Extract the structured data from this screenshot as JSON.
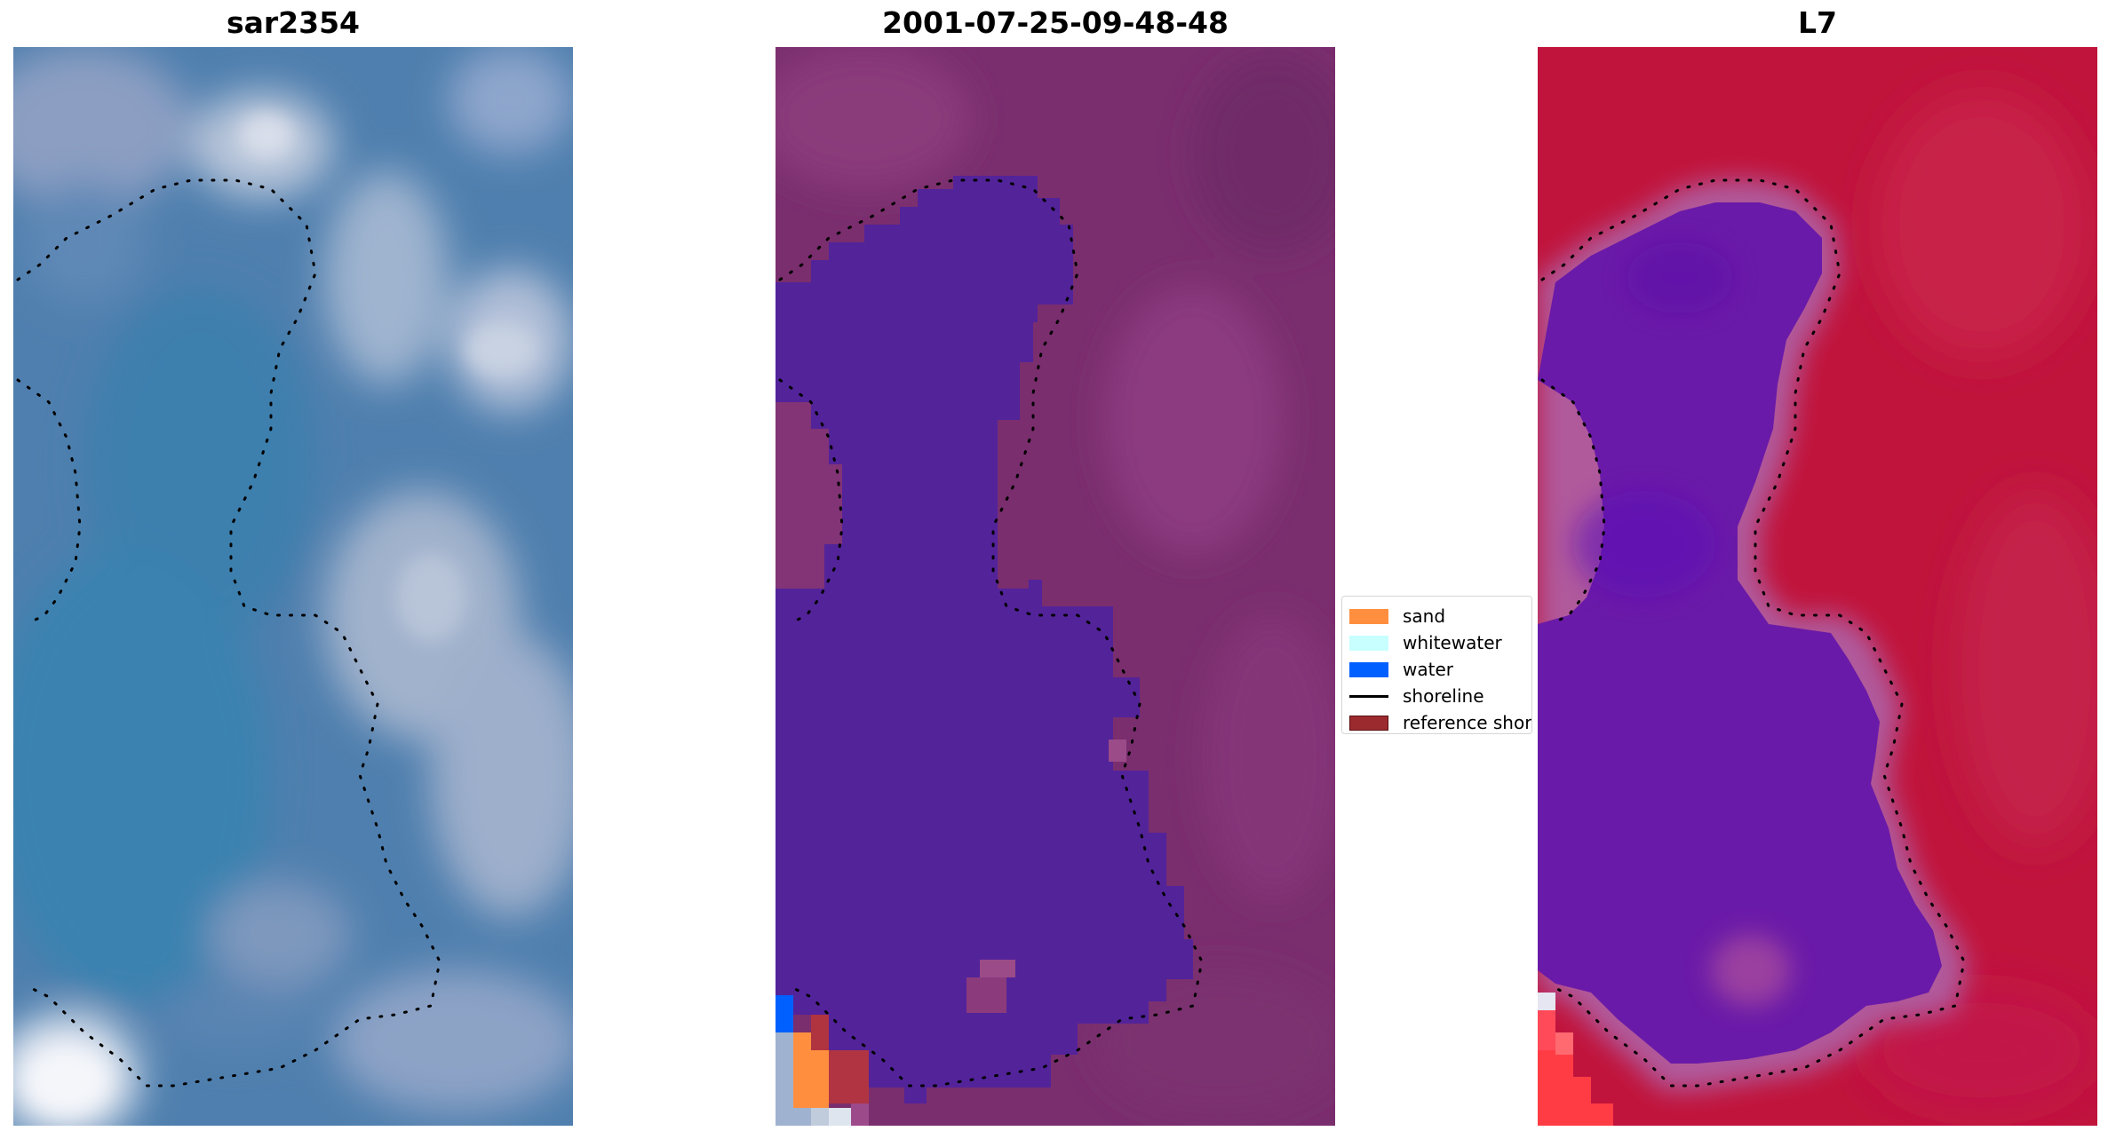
{
  "panels": [
    {
      "title": "sar2354",
      "image": "rgb-satellite-image"
    },
    {
      "title": "2001-07-25-09-48-48",
      "image": "classified-image"
    },
    {
      "title": "L7",
      "image": "mndwi-image"
    }
  ],
  "legend": {
    "items": [
      {
        "label": "sand",
        "color": "#ff8f3f",
        "kind": "patch"
      },
      {
        "label": "whitewater",
        "color": "#c8ffff",
        "kind": "patch"
      },
      {
        "label": "water",
        "color": "#0060ff",
        "kind": "patch"
      },
      {
        "label": "shoreline",
        "color": "#000000",
        "kind": "line"
      },
      {
        "label": "reference shoreline",
        "color": "#9b2a2e",
        "kind": "patch"
      }
    ]
  },
  "colors": {
    "rgb_base": "#4a7aa8",
    "class_land": "#7a2e6e",
    "class_water": "#53239a",
    "mndwi_land": "#c0143c",
    "mndwi_water": "#6a1aa8",
    "shoreline": "#000000"
  }
}
